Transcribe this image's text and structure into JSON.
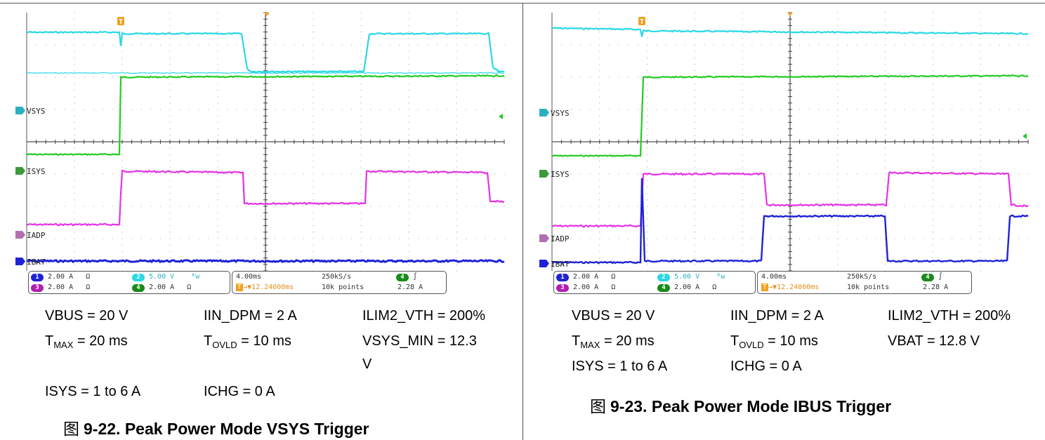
{
  "figures": [
    {
      "channels": {
        "vsys": "VSYS",
        "isys": "ISYS",
        "iadp": "IADP",
        "ibat": "IBAT"
      },
      "channel_badges": {
        "vsys": "2",
        "isys": "4",
        "iadp": "3",
        "ibat": "1"
      },
      "colors": {
        "ch1": "#1e22d6",
        "ch2": "#2ad8e6",
        "ch3": "#e632e6",
        "ch4": "#22cc22",
        "marker": "#f0a020"
      },
      "trigger_marker": "T",
      "status": {
        "ch1": {
          "num": "1",
          "scale": "2.00 A",
          "coupling": "Ω"
        },
        "ch2": {
          "num": "2",
          "scale": "5.00 V",
          "coupling": "ᴮw"
        },
        "ch3": {
          "num": "3",
          "scale": "2.00 A",
          "coupling": "Ω"
        },
        "ch4": {
          "num": "4",
          "scale": "2.00 A",
          "coupling": "Ω"
        },
        "timebase": "4.00ms",
        "sample_rate": "250kS/s",
        "trigger_pos": "12.24000ms",
        "record_length": "10k points",
        "trig_ch": "4",
        "trig_slope": "∫",
        "trig_level": "2.28 A"
      },
      "params": {
        "vbus": "VBUS = 20 V",
        "iin_dpm": "IIN_DPM = 2 A",
        "ilim2": "ILIM2_VTH = 200%",
        "tmax_base": "T",
        "tmax_sub": "MAX",
        "tmax_val": " = 20 ms",
        "tovld_base": "T",
        "tovld_sub": "OVLD",
        "tovld_val": " = 10 ms",
        "extra1": "VSYS_MIN = 12.3",
        "extra1_wrap": "V",
        "isys": "ISYS = 1 to 6 A",
        "ichg": "ICHG = 0 A"
      },
      "caption_prefix": "图",
      "caption": "9-22. Peak Power Mode VSYS Trigger"
    },
    {
      "channels": {
        "vsys": "VSYS",
        "isys": "ISYS",
        "iadp": "IADP",
        "ibat": "IBAT"
      },
      "channel_badges": {
        "vsys": "2",
        "isys": "4",
        "iadp": "3",
        "ibat": "1"
      },
      "colors": {
        "ch1": "#1e22d6",
        "ch2": "#2ad8e6",
        "ch3": "#e632e6",
        "ch4": "#22cc22",
        "marker": "#f0a020"
      },
      "trigger_marker": "T",
      "status": {
        "ch1": {
          "num": "1",
          "scale": "2.00 A",
          "coupling": "Ω"
        },
        "ch2": {
          "num": "2",
          "scale": "5.00 V",
          "coupling": "ᴮw"
        },
        "ch3": {
          "num": "3",
          "scale": "2.00 A",
          "coupling": "Ω"
        },
        "ch4": {
          "num": "4",
          "scale": "2.00 A",
          "coupling": "Ω"
        },
        "timebase": "4.00ms",
        "sample_rate": "250kS/s",
        "trigger_pos": "12.24000ms",
        "record_length": "10k points",
        "trig_ch": "4",
        "trig_slope": "∫",
        "trig_level": "2.28 A"
      },
      "params": {
        "vbus": "VBUS = 20 V",
        "iin_dpm": "IIN_DPM = 2 A",
        "ilim2": "ILIM2_VTH = 200%",
        "tmax_base": "T",
        "tmax_sub": "MAX",
        "tmax_val": " = 20 ms",
        "tovld_base": "T",
        "tovld_sub": "OVLD",
        "tovld_val": " = 10 ms",
        "extra1": "VBAT = 12.8 V",
        "isys": "ISYS = 1 to 6 A",
        "ichg": "ICHG = 0 A"
      },
      "caption_prefix": "图",
      "caption": "9-23. Peak Power Mode IBUS Trigger"
    }
  ]
}
